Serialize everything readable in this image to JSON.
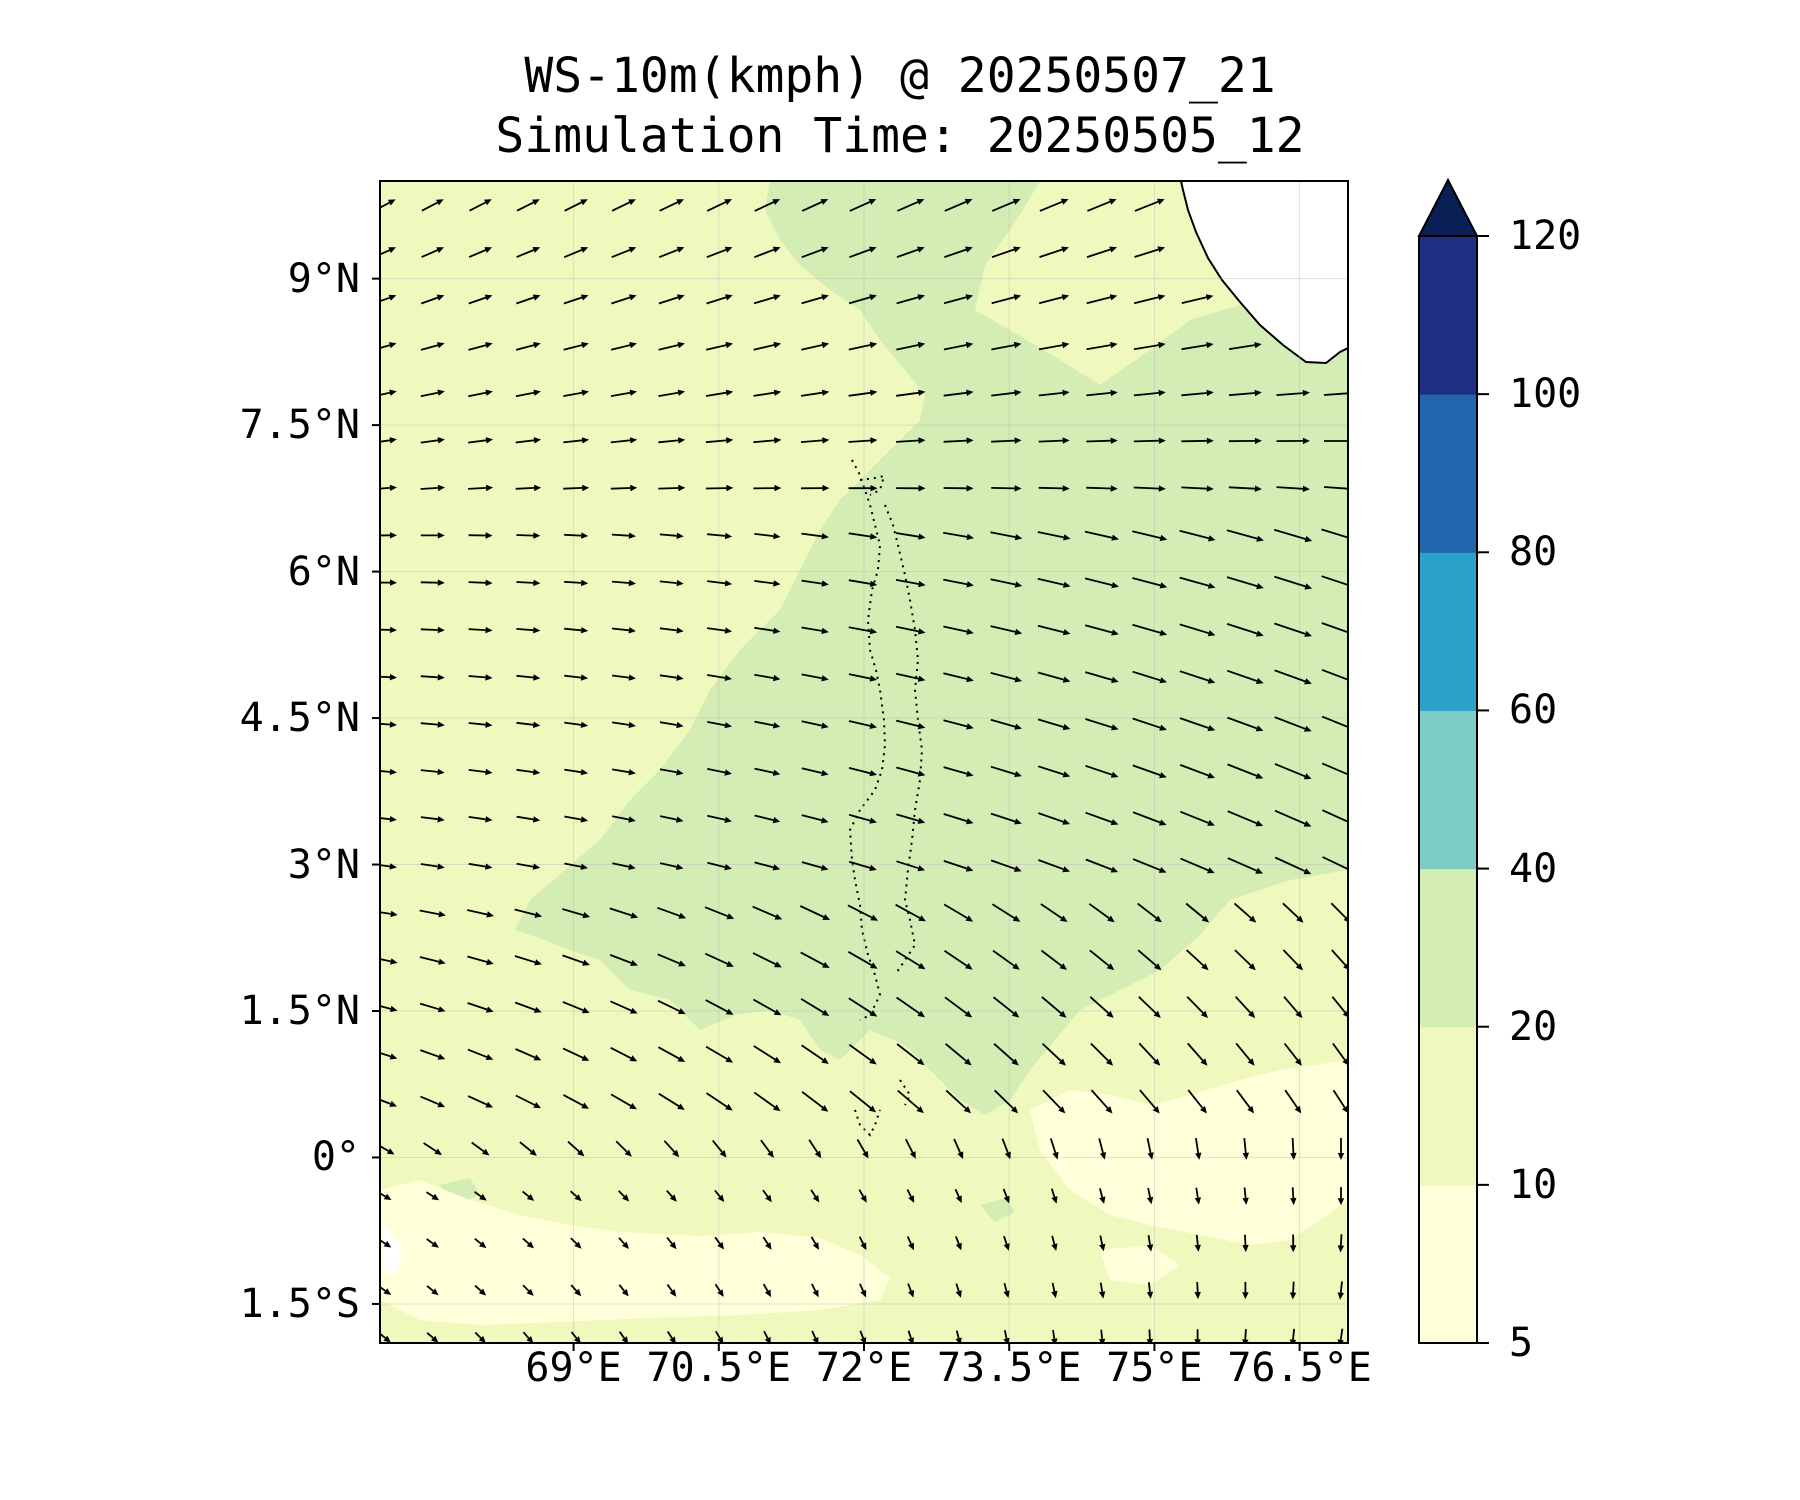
{
  "title": {
    "line1": "WS-10m(kmph) @ 20250507_21",
    "line2": "Simulation Time: 20250505_12"
  },
  "map": {
    "lon_range": [
      67.0,
      77.0
    ],
    "lat_range": [
      -1.9,
      10.0
    ],
    "lon_ticks": [
      {
        "value": 69.0,
        "label": "69°E"
      },
      {
        "value": 70.5,
        "label": "70.5°E"
      },
      {
        "value": 72.0,
        "label": "72°E"
      },
      {
        "value": 73.5,
        "label": "73.5°E"
      },
      {
        "value": 75.0,
        "label": "75°E"
      },
      {
        "value": 76.5,
        "label": "76.5°E"
      }
    ],
    "lat_ticks": [
      {
        "value": 9.0,
        "label": "9°N"
      },
      {
        "value": 7.5,
        "label": "7.5°N"
      },
      {
        "value": 6.0,
        "label": "6°N"
      },
      {
        "value": 4.5,
        "label": "4.5°N"
      },
      {
        "value": 3.0,
        "label": "3°N"
      },
      {
        "value": 1.5,
        "label": "1.5°N"
      },
      {
        "value": 0.0,
        "label": "0°"
      },
      {
        "value": -1.5,
        "label": "1.5°S"
      }
    ],
    "grid": true,
    "field_colors": {
      "5-10": "#ffffd9",
      "10-20": "#eff9bd",
      "20-40": "#d3edb4",
      "land": "#ffffff"
    },
    "coastline_color": "#000000",
    "vector_color": "#000000"
  },
  "colorbar": {
    "extend": "max",
    "levels": [
      {
        "value": 5,
        "label": "5"
      },
      {
        "value": 10,
        "label": "10"
      },
      {
        "value": 20,
        "label": "20"
      },
      {
        "value": 40,
        "label": "40"
      },
      {
        "value": 60,
        "label": "60"
      },
      {
        "value": 80,
        "label": "80"
      },
      {
        "value": 100,
        "label": "100"
      },
      {
        "value": 120,
        "label": "120"
      }
    ],
    "colors": [
      "#ffffd9",
      "#eff9bd",
      "#d3edb4",
      "#7bccc4",
      "#2ca2c9",
      "#2166ad",
      "#1e2e83"
    ],
    "extend_color": "#0b1f57"
  }
}
